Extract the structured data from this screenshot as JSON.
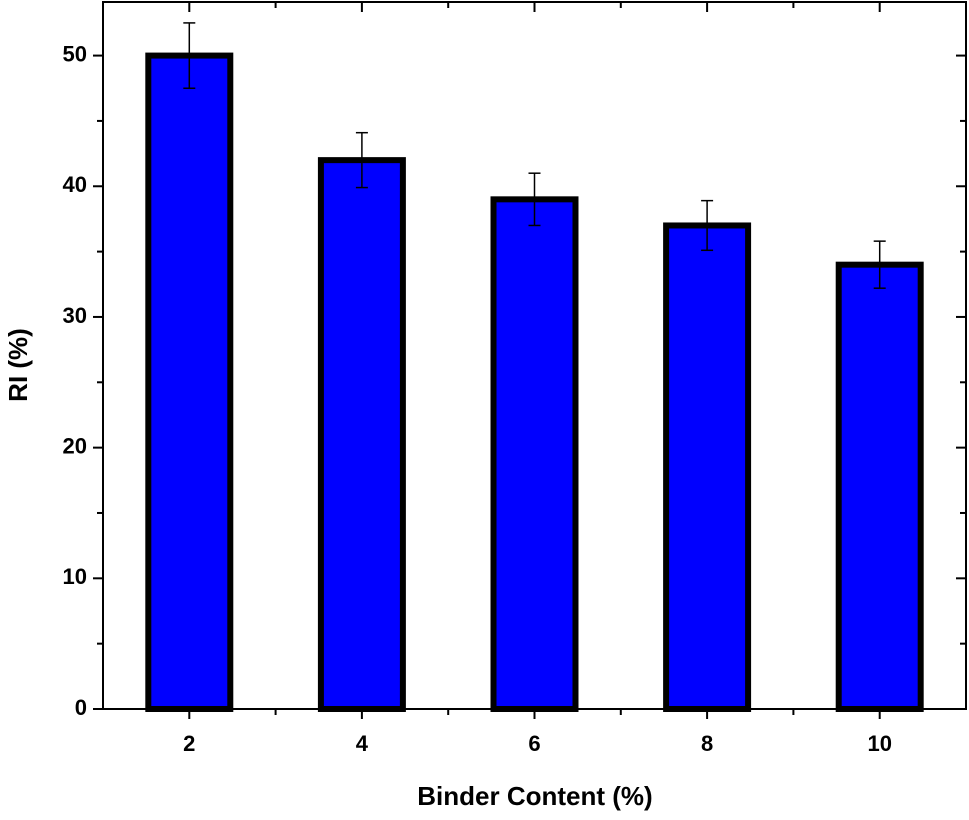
{
  "chart_data": {
    "type": "bar",
    "x_label": "Binder Content (%)",
    "y_label": "RI (%)",
    "x": [
      2,
      4,
      6,
      8,
      10
    ],
    "values": [
      50,
      42,
      39,
      37,
      34
    ],
    "errors": [
      2.5,
      2.1,
      2,
      1.9,
      1.8
    ],
    "color": "#0000ff",
    "xlim": [
      1,
      11
    ],
    "xticks": [
      2,
      4,
      6,
      8,
      10
    ],
    "xminorticks": [
      3,
      5,
      7,
      9
    ],
    "ylim": [
      0,
      54.1
    ],
    "yticks": [
      0,
      10,
      20,
      30,
      40,
      50
    ],
    "yminorticks": [
      5,
      15,
      25,
      35,
      45
    ],
    "grid": false
  }
}
